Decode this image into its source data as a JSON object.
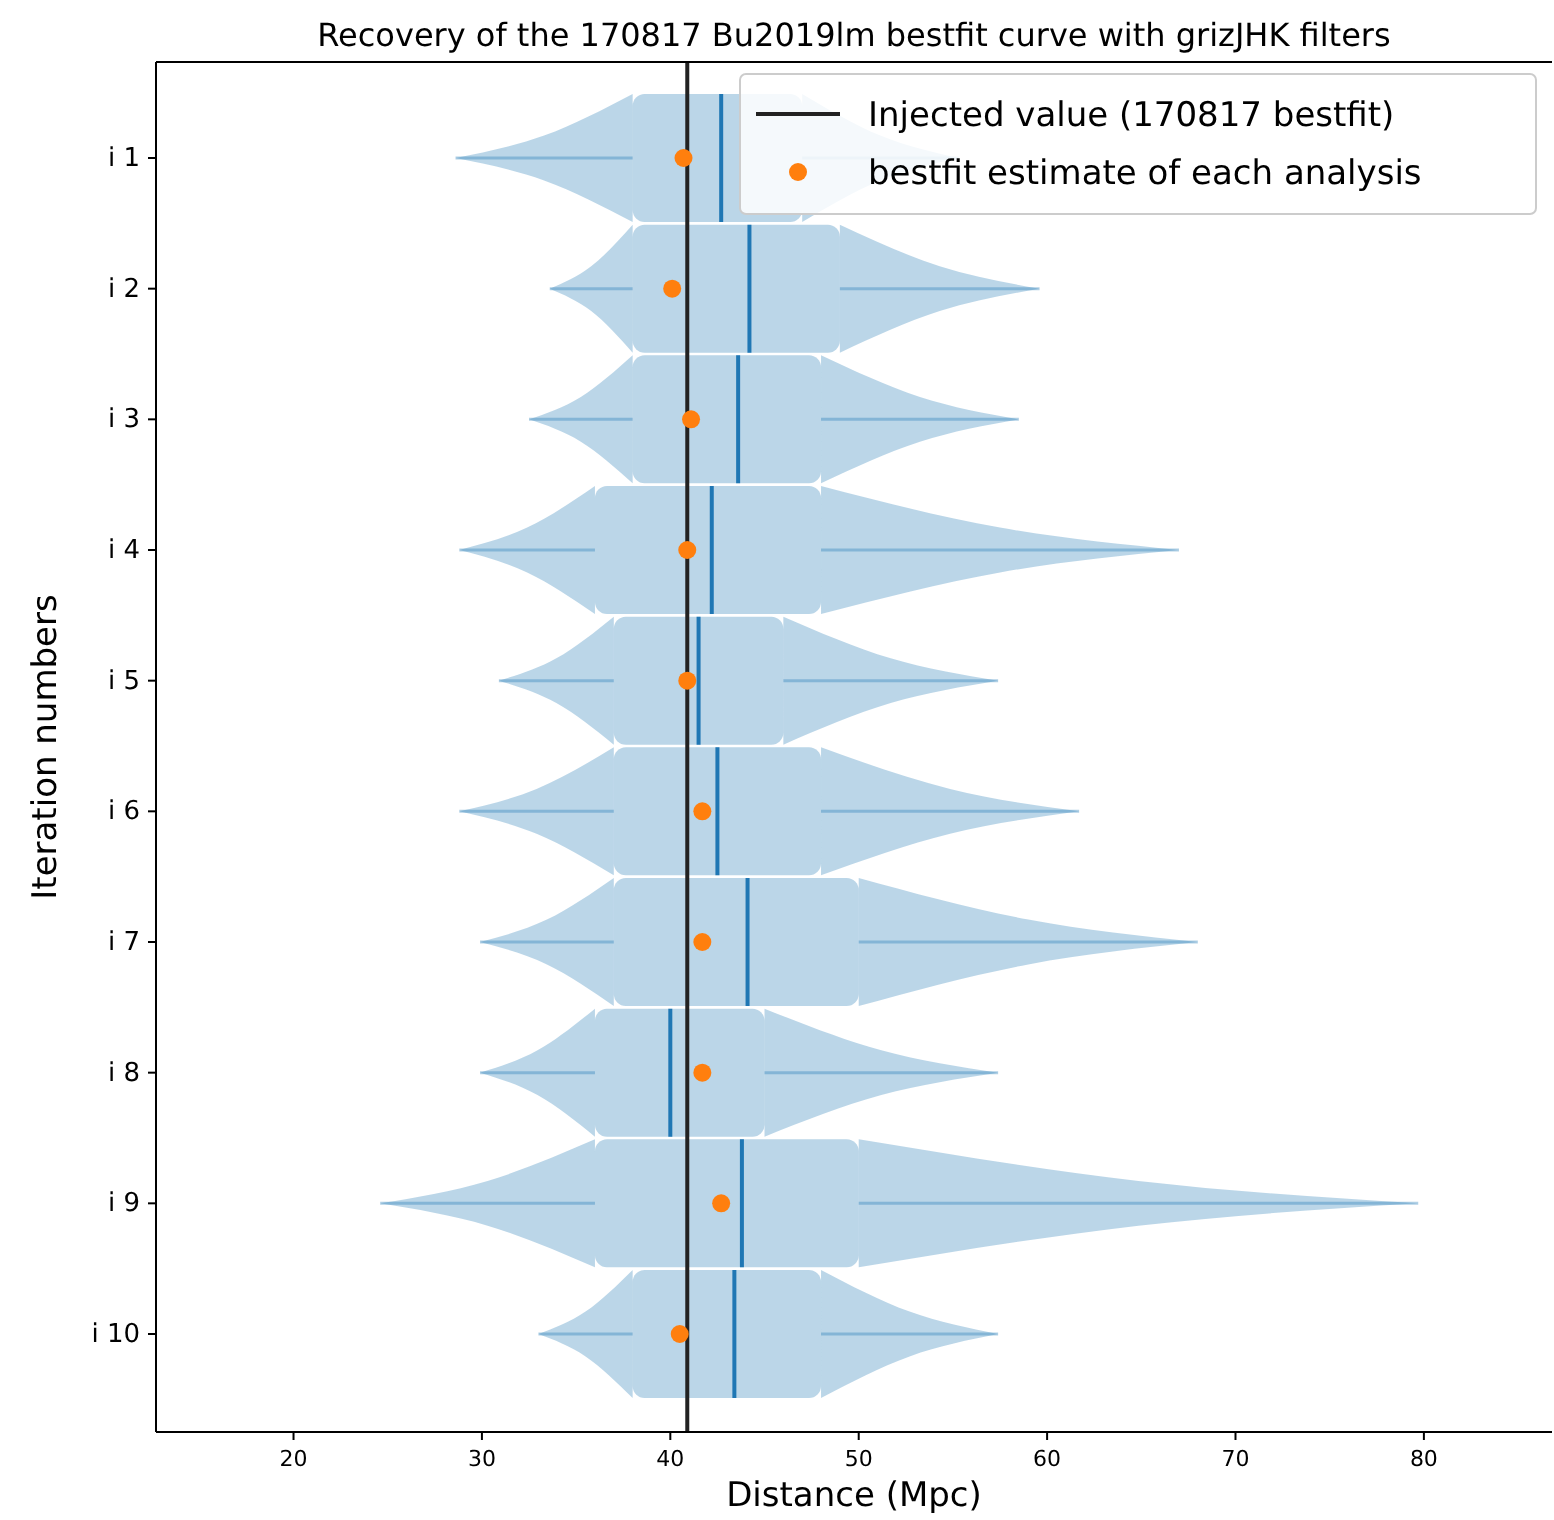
{
  "chart_data": {
    "type": "box",
    "orientation": "horizontal",
    "title": "Recovery of the 170817 Bu2019lm bestfit curve with grizJHK filters",
    "xlabel": "Distance (Mpc)",
    "ylabel": "Iteration numbers",
    "categories": [
      "i 1",
      "i 2",
      "i 3",
      "i 4",
      "i 5",
      "i 6",
      "i 7",
      "i 8",
      "i 9",
      "i 10"
    ],
    "xlim": [
      12.7,
      86.8
    ],
    "xticks": [
      20,
      30,
      40,
      50,
      60,
      70,
      80
    ],
    "series": [
      {
        "type": "box",
        "color": "#1f77b4",
        "boxes": [
          {
            "low": 28.6,
            "q1": 38,
            "median": 42.7,
            "q3": 47,
            "high": 55.3
          },
          {
            "low": 33.6,
            "q1": 38,
            "median": 44.2,
            "q3": 49,
            "high": 59.6
          },
          {
            "low": 32.5,
            "q1": 38,
            "median": 43.6,
            "q3": 48,
            "high": 58.5
          },
          {
            "low": 28.8,
            "q1": 36,
            "median": 42.2,
            "q3": 48,
            "high": 67
          },
          {
            "low": 30.9,
            "q1": 37,
            "median": 41.5,
            "q3": 46,
            "high": 57.4
          },
          {
            "low": 28.8,
            "q1": 37,
            "median": 42.5,
            "q3": 48,
            "high": 61.7
          },
          {
            "low": 29.9,
            "q1": 37,
            "median": 44.1,
            "q3": 50,
            "high": 68
          },
          {
            "low": 29.9,
            "q1": 36,
            "median": 40.0,
            "q3": 45,
            "high": 57.4
          },
          {
            "low": 24.6,
            "q1": 36,
            "median": 43.8,
            "q3": 50,
            "high": 79.7
          },
          {
            "low": 33,
            "q1": 38,
            "median": 43.4,
            "q3": 48,
            "high": 57.4
          }
        ]
      },
      {
        "type": "scatter",
        "name": "bestfit estimate of each analysis",
        "color": "#ff7f0e",
        "x": [
          "i 1",
          "i 2",
          "i 3",
          "i 4",
          "i 5",
          "i 6",
          "i 7",
          "i 8",
          "i 9",
          "i 10"
        ],
        "values": [
          40.7,
          40.1,
          41.1,
          40.9,
          40.9,
          41.7,
          41.7,
          41.7,
          42.7,
          40.5
        ]
      }
    ],
    "ref_lines": [
      {
        "axis": "x",
        "value": 40.9,
        "label": "Injected value (170817 bestfit)",
        "color": "#222222",
        "line_style": "solid"
      }
    ],
    "legend": "top right",
    "grid": false,
    "marker": "circle",
    "tick_labels": "x"
  }
}
